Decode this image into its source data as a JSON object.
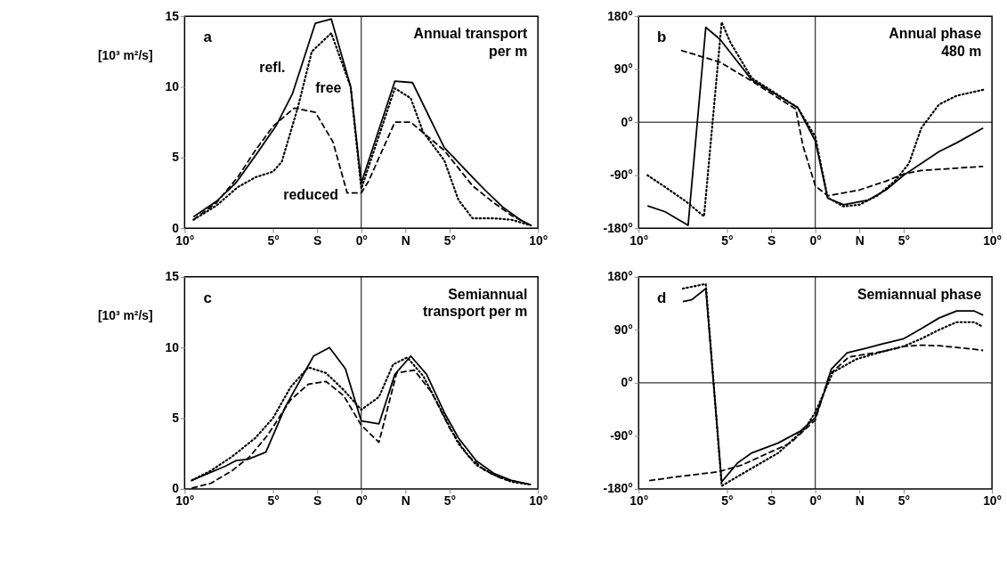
{
  "chart_data": [
    {
      "type": "line",
      "title": "Annual transport\nper m",
      "ylabel": "[10³ m²/s]",
      "annotations": [
        "a"
      ],
      "xlim": [
        -10,
        10
      ],
      "xticks": [
        {
          "value": -10,
          "label": "10°"
        },
        {
          "value": -5,
          "label": "5°"
        },
        {
          "value": -2.5,
          "label": "S"
        },
        {
          "value": 0,
          "label": "0°"
        },
        {
          "value": 2.5,
          "label": "N"
        },
        {
          "value": 5,
          "label": "5°"
        },
        {
          "value": 10,
          "label": "10°"
        }
      ],
      "ylim": [
        0,
        15
      ],
      "yticks": [
        0,
        5,
        10,
        15
      ],
      "grid": false,
      "ref_lines": [
        {
          "axis": "x",
          "value": 0,
          "label": null
        }
      ],
      "series": [
        {
          "name": "refl.",
          "color": "#000000",
          "line_style": "solid",
          "x": [
            -9.5,
            -8.2,
            -7.1,
            -5.9,
            -4.8,
            -3.9,
            -2.6,
            -1.7,
            -0.6,
            0,
            1.9,
            2.9,
            4.7,
            6,
            7,
            8,
            9,
            9.6
          ],
          "values": [
            0.8,
            1.9,
            3.2,
            5.3,
            7.3,
            9.5,
            14.5,
            14.8,
            10.0,
            3.2,
            10.4,
            10.3,
            5.7,
            4.0,
            2.7,
            1.5,
            0.6,
            0.2
          ]
        },
        {
          "name": "free",
          "color": "#000000",
          "line_style": "dotted",
          "x": [
            -9.5,
            -8.2,
            -7,
            -6,
            -5,
            -4.5,
            -3.6,
            -2.8,
            -1.7,
            -0.6,
            0,
            1.9,
            2.8,
            3.5,
            4.7,
            5.5,
            6.3,
            7.5,
            8.5,
            9.6
          ],
          "values": [
            0.6,
            1.6,
            2.9,
            3.6,
            4.0,
            4.7,
            8.5,
            12.5,
            13.8,
            10.0,
            2.8,
            9.9,
            9.2,
            6.8,
            4.8,
            2.0,
            0.7,
            0.7,
            0.6,
            0.2
          ]
        },
        {
          "name": "reduced",
          "color": "#000000",
          "line_style": "dashed",
          "x": [
            -9.5,
            -8.2,
            -7,
            -6,
            -5,
            -3.8,
            -2.6,
            -1.6,
            -0.8,
            0,
            0.4,
            1.9,
            2.8,
            4.7,
            6.3,
            7.5,
            8.5,
            9.6
          ],
          "values": [
            0.6,
            1.8,
            3.6,
            5.5,
            7.2,
            8.5,
            8.2,
            6.1,
            2.5,
            2.5,
            3.3,
            7.5,
            7.5,
            5.5,
            3.0,
            1.8,
            0.9,
            0.2
          ]
        }
      ]
    },
    {
      "type": "line",
      "title": "Annual phase\n480 m",
      "annotations": [
        "b"
      ],
      "xlim": [
        -10,
        10
      ],
      "xticks": [
        {
          "value": -10,
          "label": "10°"
        },
        {
          "value": -5,
          "label": "5°"
        },
        {
          "value": -2.5,
          "label": "S"
        },
        {
          "value": 0,
          "label": "0°"
        },
        {
          "value": 2.5,
          "label": "N"
        },
        {
          "value": 5,
          "label": "5°"
        },
        {
          "value": 10,
          "label": "10°"
        }
      ],
      "ylim": [
        -180,
        180
      ],
      "yticks": [
        {
          "value": -180,
          "label": "-180°"
        },
        {
          "value": -90,
          "label": "-90°"
        },
        {
          "value": 0,
          "label": "0°"
        },
        {
          "value": 90,
          "label": "90°"
        },
        {
          "value": 180,
          "label": "180°"
        }
      ],
      "grid": false,
      "ref_lines": [
        {
          "axis": "x",
          "value": 0,
          "label": null
        },
        {
          "axis": "y",
          "value": 0,
          "label": null
        }
      ],
      "series": [
        {
          "color": "#000000",
          "line_style": "solid",
          "x": [
            -9.5,
            -8.5,
            -7.2,
            -6.2,
            -5.4,
            -3.6,
            -1.0,
            0,
            0.7,
            1.6,
            3,
            4,
            5,
            6,
            7,
            8,
            9.5
          ],
          "values": [
            -142,
            -152,
            -175,
            161,
            141,
            72,
            25,
            -32,
            -129,
            -140,
            -132,
            -115,
            -90,
            -70,
            -50,
            -35,
            -10
          ]
        },
        {
          "color": "#000000",
          "line_style": "dotted",
          "x": [
            -9.5,
            -8.5,
            -7.3,
            -6.3,
            -5.3,
            -4.8,
            -3.6,
            -1.0,
            0,
            0.7,
            1.6,
            2.5,
            3.5,
            4.5,
            5.3,
            6,
            7,
            8,
            9.5
          ],
          "values": [
            -90,
            -110,
            -135,
            -160,
            170,
            135,
            75,
            25,
            -25,
            -128,
            -143,
            -140,
            -125,
            -100,
            -70,
            -10,
            30,
            45,
            55
          ]
        },
        {
          "color": "#000000",
          "line_style": "dashed",
          "x": [
            -7.6,
            -5.4,
            -3.5,
            -1.1,
            -0.7,
            0,
            0.7,
            1.6,
            2.5,
            4,
            5,
            6,
            7,
            8,
            9.5
          ],
          "values": [
            122,
            102,
            68,
            22,
            -40,
            -108,
            -125,
            -120,
            -115,
            -100,
            -88,
            -82,
            -80,
            -78,
            -75
          ]
        }
      ]
    },
    {
      "type": "line",
      "title": "Semiannual\ntransport per m",
      "ylabel": "[10³ m²/s]",
      "annotations": [
        "c"
      ],
      "xlim": [
        -10,
        10
      ],
      "xticks": [
        {
          "value": -10,
          "label": "10°"
        },
        {
          "value": -5,
          "label": "5°"
        },
        {
          "value": -2.5,
          "label": "S"
        },
        {
          "value": 0,
          "label": "0°"
        },
        {
          "value": 2.5,
          "label": "N"
        },
        {
          "value": 5,
          "label": "5°"
        },
        {
          "value": 10,
          "label": "10°"
        }
      ],
      "ylim": [
        0,
        15
      ],
      "yticks": [
        0,
        5,
        10,
        15
      ],
      "grid": false,
      "ref_lines": [
        {
          "axis": "x",
          "value": 0,
          "label": null
        }
      ],
      "series": [
        {
          "color": "#000000",
          "line_style": "solid",
          "x": [
            -9.6,
            -7.7,
            -7.1,
            -6.4,
            -5.4,
            -4.3,
            -2.7,
            -1.8,
            -0.9,
            0,
            1.0,
            1.9,
            2.8,
            3.7,
            4.7,
            5.5,
            6.5,
            7.5,
            8.5,
            9.6
          ],
          "values": [
            0.6,
            1.6,
            2.0,
            2.1,
            2.6,
            5.8,
            9.4,
            10.0,
            8.5,
            4.8,
            4.6,
            8.1,
            9.4,
            8.1,
            5.4,
            3.6,
            2.0,
            1.1,
            0.6,
            0.3
          ]
        },
        {
          "color": "#000000",
          "line_style": "dotted",
          "x": [
            -9.6,
            -8.5,
            -7.3,
            -6,
            -5,
            -4,
            -3,
            -2,
            -1,
            0,
            1,
            1.8,
            2.6,
            3.5,
            4.5,
            5.5,
            6.5,
            7.5,
            8.5,
            9.6
          ],
          "values": [
            0.6,
            1.3,
            2.3,
            3.6,
            5.0,
            7.2,
            8.6,
            8.2,
            7.0,
            5.6,
            6.5,
            8.8,
            9.3,
            8.0,
            5.6,
            3.2,
            1.7,
            1.0,
            0.5,
            0.3
          ]
        },
        {
          "color": "#000000",
          "line_style": "dashed",
          "x": [
            -9.6,
            -8.5,
            -7.3,
            -6.3,
            -5.3,
            -4,
            -3,
            -2,
            -1,
            0,
            1,
            2,
            3,
            4,
            5,
            6,
            7,
            8,
            9.6
          ],
          "values": [
            0.05,
            0.4,
            1.3,
            2.3,
            3.8,
            6.3,
            7.4,
            7.6,
            6.6,
            4.5,
            3.3,
            8.2,
            8.4,
            6.8,
            4.3,
            2.4,
            1.3,
            0.7,
            0.3
          ]
        }
      ]
    },
    {
      "type": "line",
      "title": "Semiannual phase",
      "annotations": [
        "d"
      ],
      "xlim": [
        -10,
        10
      ],
      "xticks": [
        {
          "value": -10,
          "label": "10°"
        },
        {
          "value": -5,
          "label": "5°"
        },
        {
          "value": -2.5,
          "label": "S"
        },
        {
          "value": 0,
          "label": "0°"
        },
        {
          "value": 2.5,
          "label": "N"
        },
        {
          "value": 5,
          "label": "5°"
        },
        {
          "value": 10,
          "label": "10°"
        }
      ],
      "ylim": [
        -180,
        180
      ],
      "yticks": [
        {
          "value": -180,
          "label": "-180°"
        },
        {
          "value": -90,
          "label": "-90°"
        },
        {
          "value": 0,
          "label": "0°"
        },
        {
          "value": 90,
          "label": "90°"
        },
        {
          "value": 180,
          "label": "180°"
        }
      ],
      "grid": false,
      "ref_lines": [
        {
          "axis": "x",
          "value": 0,
          "label": null
        },
        {
          "axis": "y",
          "value": 0,
          "label": null
        }
      ],
      "series": [
        {
          "color": "#000000",
          "line_style": "solid",
          "x": [
            -7.5,
            -7,
            -6.2,
            -5.3,
            -4.4,
            -3.6,
            -2.1,
            -0.85,
            0,
            0.5,
            0.9,
            1.8,
            2.9,
            3.8,
            5,
            6,
            7,
            8,
            9,
            9.5
          ],
          "values": [
            138,
            141,
            160,
            -168,
            -136,
            -119,
            -102,
            -82,
            -59,
            -16,
            23,
            51,
            59,
            66,
            75,
            92,
            110,
            122,
            122,
            115
          ]
        },
        {
          "color": "#000000",
          "line_style": "dotted",
          "x": [
            -7.5,
            -6.2,
            -5.3,
            -4.4,
            -2.1,
            -0.6,
            0,
            1,
            2.3,
            3.8,
            5,
            6,
            7,
            8,
            9,
            9.5
          ],
          "values": [
            160,
            168,
            -175,
            -159,
            -119,
            -78,
            -50,
            18,
            40,
            53,
            62,
            75,
            90,
            103,
            103,
            95
          ]
        },
        {
          "color": "#000000",
          "line_style": "dashed",
          "x": [
            -9.4,
            -8,
            -5.5,
            -4.2,
            -1.4,
            0,
            0.8,
            1.9,
            3.8,
            5,
            6,
            7,
            8,
            9,
            9.5
          ],
          "values": [
            -166,
            -160,
            -151,
            -140,
            -102,
            -63,
            14,
            44,
            53,
            62,
            64,
            63,
            60,
            57,
            55
          ]
        }
      ]
    }
  ]
}
